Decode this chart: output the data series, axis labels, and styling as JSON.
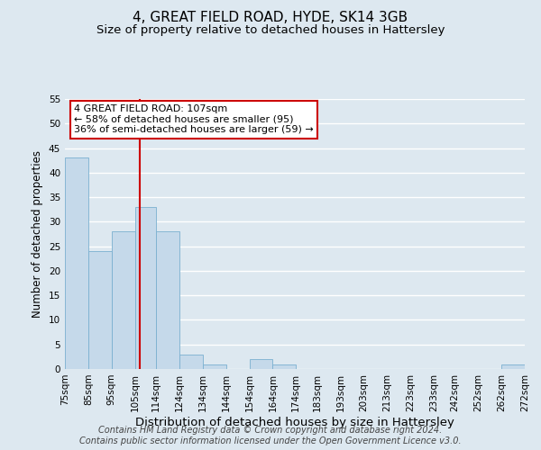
{
  "title": "4, GREAT FIELD ROAD, HYDE, SK14 3GB",
  "subtitle": "Size of property relative to detached houses in Hattersley",
  "xlabel": "Distribution of detached houses by size in Hattersley",
  "ylabel": "Number of detached properties",
  "bin_edges": [
    75,
    85,
    95,
    105,
    114,
    124,
    134,
    144,
    154,
    164,
    174,
    183,
    193,
    203,
    213,
    223,
    233,
    242,
    252,
    262,
    272
  ],
  "bin_labels": [
    "75sqm",
    "85sqm",
    "95sqm",
    "105sqm",
    "114sqm",
    "124sqm",
    "134sqm",
    "144sqm",
    "154sqm",
    "164sqm",
    "174sqm",
    "183sqm",
    "193sqm",
    "203sqm",
    "213sqm",
    "223sqm",
    "233sqm",
    "242sqm",
    "252sqm",
    "262sqm",
    "272sqm"
  ],
  "counts": [
    43,
    24,
    28,
    33,
    28,
    3,
    1,
    0,
    2,
    1,
    0,
    0,
    0,
    0,
    0,
    0,
    0,
    0,
    0,
    1
  ],
  "bar_color": "#c5d9ea",
  "bar_edge_color": "#7ab0d0",
  "property_value": 107,
  "vline_color": "#cc0000",
  "ylim": [
    0,
    55
  ],
  "yticks": [
    0,
    5,
    10,
    15,
    20,
    25,
    30,
    35,
    40,
    45,
    50,
    55
  ],
  "annotation_line1": "4 GREAT FIELD ROAD: 107sqm",
  "annotation_line2": "← 58% of detached houses are smaller (95)",
  "annotation_line3": "36% of semi-detached houses are larger (59) →",
  "annotation_box_color": "#ffffff",
  "annotation_box_edgecolor": "#cc0000",
  "footer_line1": "Contains HM Land Registry data © Crown copyright and database right 2024.",
  "footer_line2": "Contains public sector information licensed under the Open Government Licence v3.0.",
  "background_color": "#dde8f0",
  "grid_color": "#ffffff",
  "title_fontsize": 11,
  "subtitle_fontsize": 9.5,
  "xlabel_fontsize": 9.5,
  "ylabel_fontsize": 8.5,
  "tick_fontsize": 7.5,
  "footer_fontsize": 7
}
